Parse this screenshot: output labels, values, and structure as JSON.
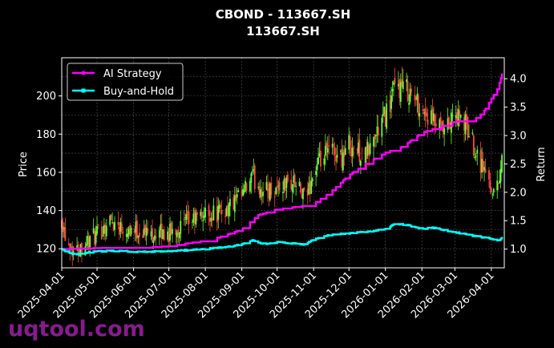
{
  "title": "CBOND - 113667.SH",
  "subtitle": "113667.SH",
  "watermark": "uqtool.com",
  "colors": {
    "background": "#000000",
    "grid": "#555555",
    "axis": "#ffffff",
    "candle_up": "#66ff33",
    "candle_down": "#ff4444",
    "ai_strategy": "#ff00ff",
    "buy_and_hold": "#00ffff"
  },
  "chart_data": {
    "type": "line",
    "title": "CBOND - 113667.SH",
    "subtitle": "113667.SH",
    "xlabel": "",
    "ylabel": "Price",
    "ylabel_right": "Return",
    "grid": true,
    "legend_position": "top-left",
    "x_ticks": [
      "2025-04-01",
      "2025-05-01",
      "2025-06-01",
      "2025-07-01",
      "2025-08-01",
      "2025-09-01",
      "2025-10-01",
      "2025-11-01",
      "2025-12-01",
      "2026-01-01",
      "2026-02-01",
      "2026-03-01",
      "2026-04-01"
    ],
    "x_range": [
      "2025-04-01",
      "2026-04-12"
    ],
    "y_ticks": [
      120,
      140,
      160,
      180,
      200
    ],
    "y_range": [
      110,
      220
    ],
    "y_right_ticks": [
      "1.0",
      "1.5",
      "2.0",
      "2.5",
      "3.0",
      "3.5",
      "4.0"
    ],
    "y_right_range": [
      0.67,
      4.37
    ],
    "price_anchors": {
      "x": [
        "2025-04-01",
        "2025-04-05",
        "2025-04-12",
        "2025-04-20",
        "2025-05-01",
        "2025-05-12",
        "2025-05-20",
        "2025-06-01",
        "2025-06-15",
        "2025-07-01",
        "2025-07-15",
        "2025-08-01",
        "2025-08-15",
        "2025-09-01",
        "2025-09-10",
        "2025-09-20",
        "2025-10-01",
        "2025-10-15",
        "2025-10-25",
        "2025-11-01",
        "2025-11-15",
        "2025-11-25",
        "2025-12-01",
        "2025-12-15",
        "2026-01-01",
        "2026-01-10",
        "2026-01-20",
        "2026-02-01",
        "2026-02-10",
        "2026-02-20",
        "2026-03-01",
        "2026-03-10",
        "2026-03-20",
        "2026-03-28",
        "2026-04-05",
        "2026-04-12"
      ],
      "close": [
        136,
        125,
        118,
        123,
        127,
        135,
        132,
        130,
        128,
        128,
        133,
        138,
        139,
        147,
        157,
        150,
        152,
        155,
        145,
        160,
        172,
        168,
        175,
        168,
        190,
        205,
        203,
        193,
        186,
        180,
        190,
        185,
        170,
        158,
        148,
        175
      ]
    },
    "series": [
      {
        "name": "AI Strategy",
        "x": [
          "2025-04-01",
          "2025-05-01",
          "2025-06-01",
          "2025-07-01",
          "2025-08-01",
          "2025-08-15",
          "2025-09-01",
          "2025-09-15",
          "2025-10-01",
          "2025-10-20",
          "2025-11-01",
          "2025-11-15",
          "2025-12-01",
          "2025-12-15",
          "2026-01-01",
          "2026-01-15",
          "2026-02-01",
          "2026-02-15",
          "2026-03-01",
          "2026-03-15",
          "2026-03-25",
          "2026-04-01",
          "2026-04-07",
          "2026-04-12"
        ],
        "values": [
          1.0,
          1.02,
          1.02,
          1.05,
          1.15,
          1.22,
          1.35,
          1.6,
          1.7,
          1.75,
          1.8,
          2.0,
          2.3,
          2.5,
          2.7,
          2.8,
          3.05,
          3.15,
          3.25,
          3.25,
          3.4,
          3.65,
          3.85,
          4.25
        ]
      },
      {
        "name": "Buy-and-Hold",
        "x": [
          "2025-04-01",
          "2025-04-05",
          "2025-04-12",
          "2025-04-20",
          "2025-05-01",
          "2025-05-20",
          "2025-06-01",
          "2025-07-01",
          "2025-08-01",
          "2025-08-15",
          "2025-09-01",
          "2025-09-10",
          "2025-09-20",
          "2025-10-01",
          "2025-10-25",
          "2025-11-01",
          "2025-11-15",
          "2025-12-01",
          "2025-12-15",
          "2026-01-01",
          "2026-01-10",
          "2026-01-20",
          "2026-02-01",
          "2026-02-10",
          "2026-02-20",
          "2026-03-01",
          "2026-03-20",
          "2026-04-01",
          "2026-04-07",
          "2026-04-12"
        ],
        "values": [
          1.0,
          0.95,
          0.9,
          0.93,
          0.96,
          0.97,
          0.95,
          0.96,
          1.0,
          1.03,
          1.08,
          1.15,
          1.09,
          1.12,
          1.08,
          1.17,
          1.25,
          1.28,
          1.3,
          1.35,
          1.45,
          1.42,
          1.35,
          1.38,
          1.33,
          1.3,
          1.22,
          1.18,
          1.15,
          1.25
        ]
      }
    ]
  }
}
